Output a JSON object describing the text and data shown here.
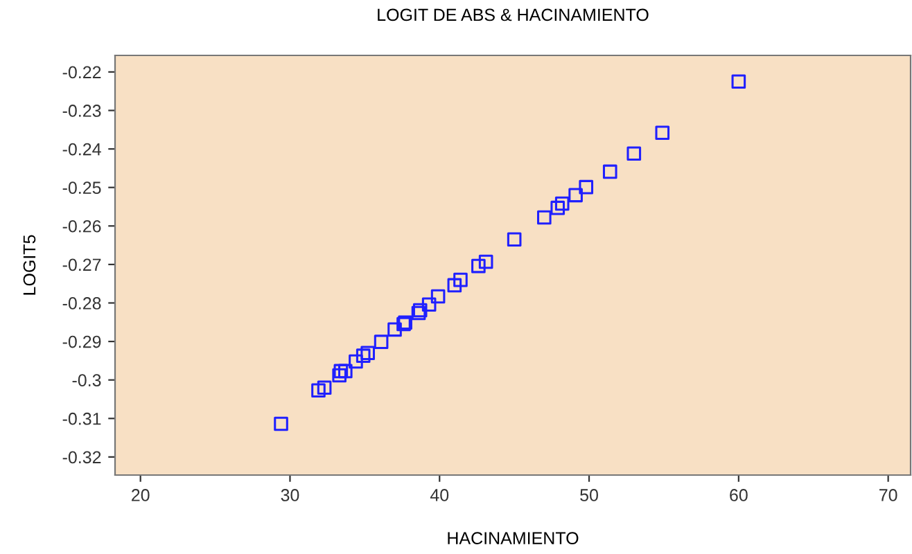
{
  "chart_data": {
    "type": "scatter",
    "title": "LOGIT DE ABS & HACINAMIENTO",
    "xlabel": "HACINAMIENTO",
    "ylabel": "LOGIT5",
    "x": [
      60.0,
      54.9,
      53.0,
      51.4,
      49.8,
      49.1,
      48.2,
      47.9,
      47.0,
      45.0,
      43.1,
      42.6,
      41.4,
      41.0,
      39.9,
      39.3,
      38.7,
      38.6,
      37.7,
      37.6,
      37.0,
      36.1,
      35.2,
      34.9,
      34.4,
      33.7,
      33.4,
      33.3,
      32.3,
      31.9,
      29.4
    ],
    "values": [
      -0.2225,
      -0.2358,
      -0.2412,
      -0.2459,
      -0.2499,
      -0.252,
      -0.2542,
      -0.2553,
      -0.2578,
      -0.2635,
      -0.2693,
      -0.2704,
      -0.274,
      -0.2754,
      -0.2783,
      -0.2804,
      -0.2819,
      -0.2826,
      -0.2851,
      -0.2855,
      -0.2869,
      -0.2901,
      -0.293,
      -0.2937,
      -0.2952,
      -0.2977,
      -0.2977,
      -0.2988,
      -0.302,
      -0.3027,
      -0.3114
    ],
    "color": "#2020ff",
    "marker": "square",
    "xlim": [
      18.3,
      71.5
    ],
    "xticks": [
      20,
      30,
      40,
      50,
      60,
      70
    ],
    "ylim": [
      -0.3247,
      -0.2157
    ],
    "yticks": [
      -0.32,
      -0.31,
      -0.3,
      -0.29,
      -0.28,
      -0.27,
      -0.26,
      -0.25,
      -0.24,
      -0.23,
      -0.22
    ],
    "grid": false
  }
}
